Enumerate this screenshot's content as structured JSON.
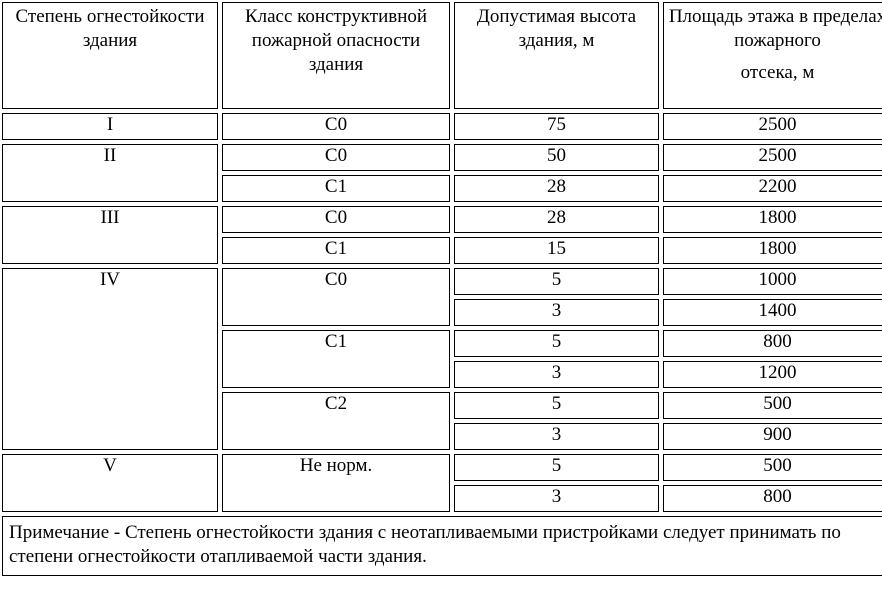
{
  "headers": {
    "fire_resistance": "Степень огнестойкости здания",
    "construction_class": "Класс конструктивной пожарной опасности здания",
    "max_height": "Допустимая высота здания, м",
    "floor_area_line1": "Площадь этажа в пределах пожарного",
    "floor_area_line2": "отсека, м"
  },
  "rows": [
    {
      "degree": "I",
      "cls": "С0",
      "height": "75",
      "area": "2500"
    },
    {
      "degree": "II",
      "cls": "С0",
      "height": "50",
      "area": "2500"
    },
    {
      "cls": "С1",
      "height": "28",
      "area": "2200"
    },
    {
      "degree": "III",
      "cls": "С0",
      "height": "28",
      "area": "1800"
    },
    {
      "cls": "С1",
      "height": "15",
      "area": "1800"
    },
    {
      "degree": "IV",
      "cls": "С0",
      "height": "5",
      "area": "1000"
    },
    {
      "height": "3",
      "area": "1400"
    },
    {
      "cls": "С1",
      "height": "5",
      "area": "800"
    },
    {
      "height": "3",
      "area": "1200"
    },
    {
      "cls": "С2",
      "height": "5",
      "area": "500"
    },
    {
      "height": "3",
      "area": "900"
    },
    {
      "degree": "V",
      "cls": "Не норм.",
      "height": "5",
      "area": "500"
    },
    {
      "height": "3",
      "area": "800"
    }
  ],
  "note": "Примечание - Степень огнестойкости здания с неотапливаемыми пристройками следует принимать по степени огнестойкости отапливаемой части здания."
}
